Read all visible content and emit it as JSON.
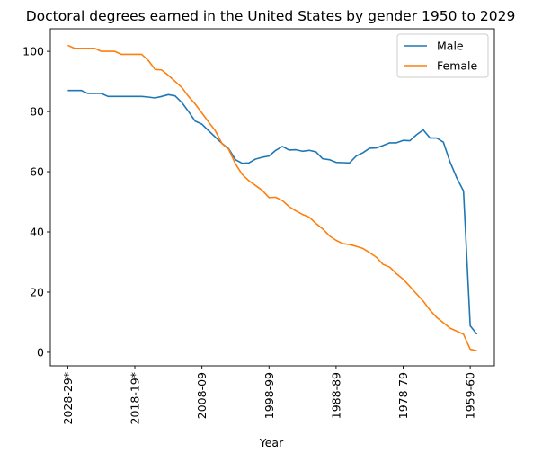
{
  "chart_data": {
    "type": "line",
    "title": "Doctoral degrees earned in the United States by gender 1950 to 2029",
    "xlabel": "Year",
    "ylabel": "",
    "ylim": [
      -4.5,
      107.5
    ],
    "yticks": [
      0,
      20,
      40,
      60,
      80,
      100
    ],
    "xticks": [
      {
        "index": 0,
        "label": "2028-29*"
      },
      {
        "index": 10,
        "label": "2018-19*"
      },
      {
        "index": 20,
        "label": "2008-09"
      },
      {
        "index": 30,
        "label": "1998-99"
      },
      {
        "index": 40,
        "label": "1988-89"
      },
      {
        "index": 50,
        "label": "1978-79"
      },
      {
        "index": 60,
        "label": "1959-60"
      }
    ],
    "x": [
      0,
      1,
      2,
      3,
      4,
      5,
      6,
      7,
      8,
      9,
      10,
      11,
      12,
      13,
      14,
      15,
      16,
      17,
      18,
      19,
      20,
      21,
      22,
      23,
      24,
      25,
      26,
      27,
      28,
      29,
      30,
      31,
      32,
      33,
      34,
      35,
      36,
      37,
      38,
      39,
      40,
      41,
      42,
      43,
      44,
      45,
      46,
      47,
      48,
      49,
      50,
      51,
      52,
      53,
      54,
      55,
      56,
      57,
      58,
      59,
      60,
      61
    ],
    "series": [
      {
        "name": "Male",
        "color": "#1f77b4",
        "values": [
          87,
          87,
          87,
          86,
          86,
          86,
          85,
          85,
          85,
          85,
          85,
          85,
          84.8,
          84.5,
          85,
          85.6,
          85.2,
          83,
          80,
          76.8,
          75.8,
          73.6,
          71.5,
          69.4,
          67.6,
          64,
          62.8,
          62.9,
          64.2,
          64.8,
          65.2,
          67.1,
          68.4,
          67.2,
          67.3,
          66.8,
          67.1,
          66.6,
          64.3,
          64,
          63.1,
          63,
          62.9,
          65.2,
          66.3,
          67.8,
          67.9,
          68.7,
          69.6,
          69.6,
          70.4,
          70.3,
          72.3,
          73.9,
          71.2,
          71.2,
          69.8,
          63.2,
          57.9,
          53.6,
          8.8,
          6
        ]
      },
      {
        "name": "Female",
        "color": "#ff7f0e",
        "values": [
          102,
          101,
          101,
          101,
          101,
          100,
          100,
          100,
          99,
          99,
          99,
          99,
          97,
          94,
          93.8,
          92,
          90,
          88,
          85,
          82.5,
          79.5,
          76.5,
          73.6,
          69.3,
          67.4,
          62.6,
          59.1,
          57,
          55.4,
          53.8,
          51.4,
          51.5,
          50.4,
          48.4,
          47,
          45.8,
          44.9,
          42.8,
          41,
          38.7,
          37.2,
          36.1,
          35.8,
          35.2,
          34.5,
          33.1,
          31.6,
          29.2,
          28.3,
          26.1,
          24.3,
          21.9,
          19.4,
          17,
          14,
          11.6,
          9.8,
          8,
          7,
          6,
          1,
          0.5
        ]
      }
    ],
    "legend": {
      "position": "top-right",
      "entries": [
        "Male",
        "Female"
      ]
    },
    "grid": false
  }
}
